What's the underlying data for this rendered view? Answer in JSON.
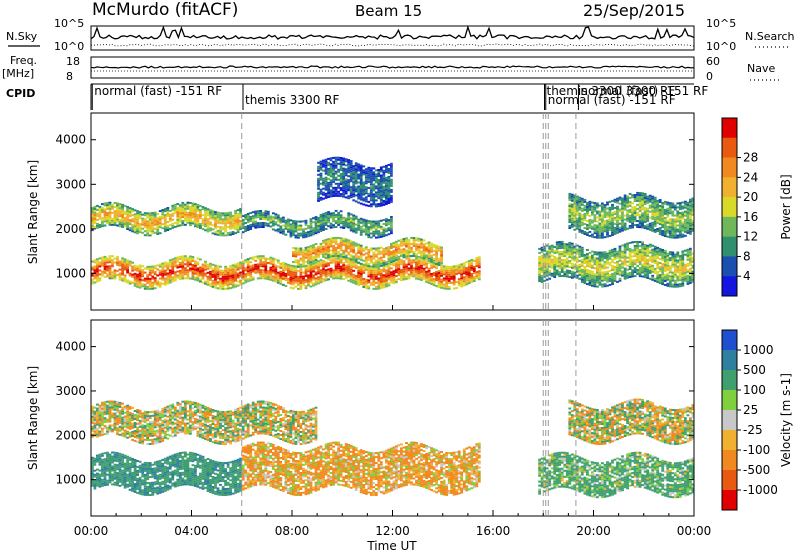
{
  "header": {
    "station": "McMurdo (fitACF)",
    "beam": "Beam 15",
    "date": "25/Sep/2015"
  },
  "side_labels": {
    "nsky": "N.Sky",
    "nsearch": "N.Search",
    "freq": "Freq.",
    "freq_unit": "[MHz]",
    "nave": "Nave",
    "cpid": "CPID"
  },
  "noise_panel": {
    "left_ticks": [
      "10^5",
      "10^0"
    ],
    "right_ticks": [
      "10^5",
      "10^0"
    ]
  },
  "freq_panel": {
    "left_ticks": [
      "18",
      "8"
    ],
    "right_ticks": [
      "60",
      "0"
    ]
  },
  "cpid_labels": [
    {
      "text": "normal (fast) -151 RF",
      "hour": 0.05
    },
    {
      "text": "themis 3300 RF",
      "hour": 6.05
    },
    {
      "text": "themis 3300 3300 RF",
      "hour": 18.05
    },
    {
      "text": "normal (fast) -151 RF",
      "hour": 18.1
    },
    {
      "text": "normal (fast) -151 RF",
      "hour": 19.4
    }
  ],
  "mode_change_hours": [
    6.0,
    18.0,
    18.1,
    18.2,
    19.3
  ],
  "chart_data": [
    {
      "type": "heatmap",
      "quantity": "Power",
      "ylabel": "Slant Range [km]",
      "yticks": [
        1000,
        2000,
        3000,
        4000
      ],
      "ylim": [
        180,
        4600
      ],
      "colorbar": {
        "label": "Power [dB]",
        "ticks": [
          4,
          8,
          12,
          16,
          20,
          24,
          28
        ],
        "ticks_label": [
          "4",
          "8",
          "12",
          "16",
          "20",
          "24",
          "28"
        ],
        "colors": [
          "#1515e0",
          "#1a4fb0",
          "#2f8f6f",
          "#6eb85a",
          "#d9d92a",
          "#f0b030",
          "#f08a20",
          "#e85a10",
          "#e00000"
        ]
      },
      "bands": [
        {
          "from": 0,
          "to": 15.5,
          "r0": 750,
          "r1": 1250,
          "power": 28
        },
        {
          "from": 8,
          "to": 14,
          "r0": 1250,
          "r1": 1700,
          "power": 22
        },
        {
          "from": 0,
          "to": 6,
          "r0": 1950,
          "r1": 2450,
          "power": 20
        },
        {
          "from": 6,
          "to": 12,
          "r0": 1900,
          "r1": 2300,
          "power": 12
        },
        {
          "from": 17.8,
          "to": 24,
          "r0": 800,
          "r1": 1600,
          "power": 16
        },
        {
          "from": 19,
          "to": 24,
          "r0": 1900,
          "r1": 2700,
          "power": 14
        },
        {
          "from": 9,
          "to": 12,
          "r0": 2600,
          "r1": 3500,
          "power": 8
        }
      ]
    },
    {
      "type": "heatmap",
      "quantity": "Velocity",
      "ylabel": "Slant Range [km]",
      "yticks": [
        1000,
        2000,
        3000,
        4000
      ],
      "ylim": [
        180,
        4600
      ],
      "colorbar": {
        "label": "Velocity [m s-1]",
        "ticks": [
          1000,
          500,
          100,
          25,
          -25,
          -100,
          -500,
          -1000
        ],
        "ticks_label": [
          "1000",
          "500",
          "100",
          "25",
          "-25",
          "-100",
          "-500",
          "-1000"
        ],
        "colors": [
          "#1f4fd0",
          "#2f7f9f",
          "#3f9f6f",
          "#7fcf3f",
          "#c8c8c8",
          "#f0b030",
          "#f08a20",
          "#e85a10",
          "#e00000"
        ]
      },
      "bands": [
        {
          "from": 0,
          "to": 6,
          "r0": 750,
          "r1": 1500,
          "vel": 400
        },
        {
          "from": 6,
          "to": 15.5,
          "r0": 750,
          "r1": 1700,
          "vel": -150
        },
        {
          "from": 0,
          "to": 9,
          "r0": 1900,
          "r1": 2650,
          "vel": 0
        },
        {
          "from": 17.8,
          "to": 24,
          "r0": 700,
          "r1": 1500,
          "vel": 200
        },
        {
          "from": 19,
          "to": 24,
          "r0": 1900,
          "r1": 2700,
          "vel": 0
        }
      ]
    }
  ],
  "x_axis": {
    "ticks": [
      "00:00",
      "04:00",
      "08:00",
      "12:00",
      "16:00",
      "20:00",
      "00:00"
    ],
    "label": "Time UT",
    "range_hours": [
      0,
      24
    ]
  }
}
